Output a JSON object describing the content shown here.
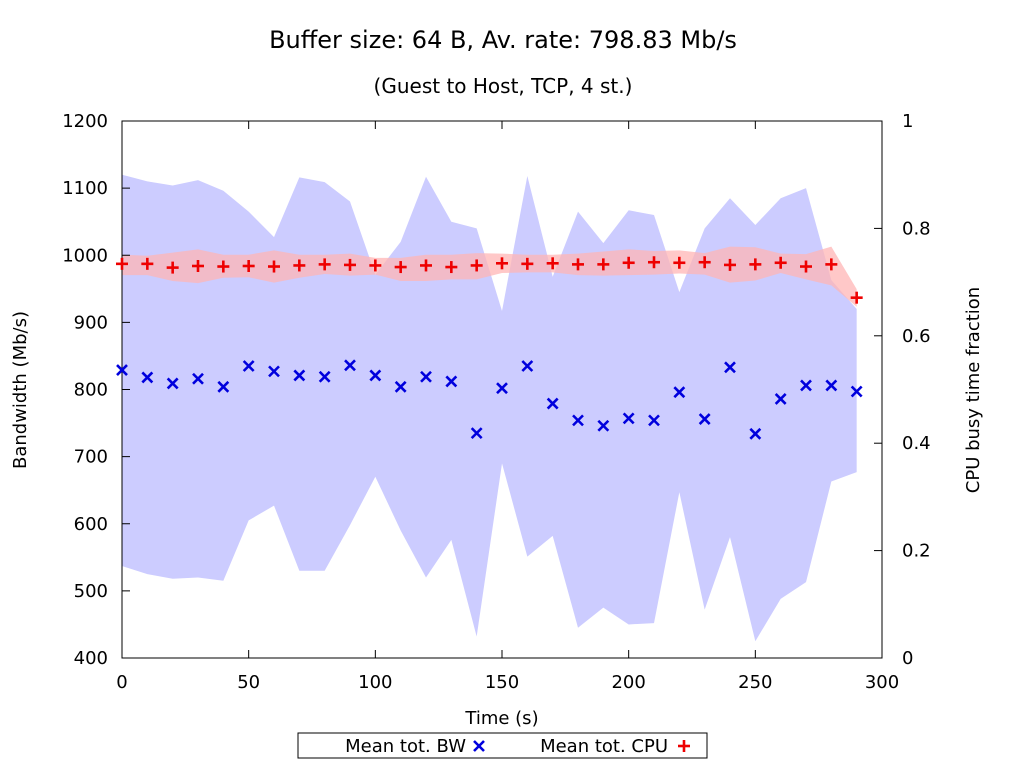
{
  "chart_data": {
    "type": "scatter",
    "title": "Buffer size: 64 B, Av. rate: 798.83 Mb/s",
    "subtitle": "(Guest to Host, TCP, 4 st.)",
    "xlabel": "Time (s)",
    "ylabel": "Bandwidth (Mb/s)",
    "y2label": "CPU busy time fraction",
    "xlim": [
      0,
      300
    ],
    "ylim": [
      400,
      1200
    ],
    "y2lim": [
      0,
      1
    ],
    "x_ticks": [
      "0",
      "50",
      "100",
      "150",
      "200",
      "250",
      "300"
    ],
    "y_ticks": [
      "400",
      "500",
      "600",
      "700",
      "800",
      "900",
      "1000",
      "1100",
      "1200"
    ],
    "y2_ticks": [
      "0",
      "0.2",
      "0.4",
      "0.6",
      "0.8",
      "1"
    ],
    "grid": false,
    "legend_position": "bottom",
    "colors": {
      "bw": "#0000dd",
      "bw_band": "#ccccff",
      "cpu": "#ee0000",
      "cpu_band": "#ffb6b6"
    },
    "series": [
      {
        "name": "Mean tot. BW",
        "axis": "left",
        "marker": "x",
        "x": [
          0,
          10,
          20,
          30,
          40,
          50,
          60,
          70,
          80,
          90,
          100,
          110,
          120,
          130,
          140,
          150,
          160,
          170,
          180,
          190,
          200,
          210,
          220,
          230,
          240,
          250,
          260,
          270,
          280,
          290
        ],
        "y": [
          829,
          818,
          809,
          816,
          804,
          835,
          827,
          821,
          819,
          836,
          821,
          804,
          819,
          812,
          735,
          802,
          835,
          779,
          754,
          746,
          757,
          754,
          796,
          756,
          833,
          734,
          786,
          806,
          806,
          797
        ],
        "band_upper": [
          1120,
          1110,
          1104,
          1112,
          1096,
          1065,
          1027,
          1116,
          1109,
          1080,
          971,
          1020,
          1117,
          1050,
          1040,
          917,
          1118,
          968,
          1065,
          1018,
          1067,
          1060,
          945,
          1040,
          1085,
          1045,
          1085,
          1100,
          963,
          920
        ],
        "band_lower": [
          537,
          525,
          518,
          520,
          515,
          605,
          627,
          530,
          530,
          598,
          670,
          590,
          520,
          576,
          432,
          690,
          551,
          582,
          445,
          475,
          450,
          452,
          647,
          472,
          580,
          425,
          488,
          513,
          663,
          677
        ]
      },
      {
        "name": "Mean tot. CPU",
        "axis": "right",
        "marker": "+",
        "x": [
          0,
          10,
          20,
          30,
          40,
          50,
          60,
          70,
          80,
          90,
          100,
          110,
          120,
          130,
          140,
          150,
          160,
          170,
          180,
          190,
          200,
          210,
          220,
          230,
          240,
          250,
          260,
          270,
          280,
          290
        ],
        "y": [
          0.734,
          0.734,
          0.727,
          0.73,
          0.729,
          0.73,
          0.729,
          0.731,
          0.733,
          0.732,
          0.731,
          0.728,
          0.731,
          0.728,
          0.731,
          0.735,
          0.734,
          0.735,
          0.733,
          0.733,
          0.736,
          0.737,
          0.736,
          0.737,
          0.732,
          0.733,
          0.736,
          0.729,
          0.733,
          0.671
        ],
        "band_upper": [
          0.751,
          0.749,
          0.755,
          0.761,
          0.751,
          0.751,
          0.759,
          0.751,
          0.751,
          0.753,
          0.745,
          0.745,
          0.751,
          0.751,
          0.754,
          0.753,
          0.751,
          0.751,
          0.753,
          0.757,
          0.761,
          0.758,
          0.759,
          0.754,
          0.766,
          0.765,
          0.753,
          0.752,
          0.766,
          0.687
        ],
        "band_lower": [
          0.713,
          0.713,
          0.702,
          0.698,
          0.708,
          0.709,
          0.699,
          0.708,
          0.715,
          0.712,
          0.714,
          0.702,
          0.702,
          0.705,
          0.705,
          0.717,
          0.718,
          0.718,
          0.713,
          0.712,
          0.713,
          0.714,
          0.716,
          0.714,
          0.699,
          0.703,
          0.717,
          0.705,
          0.694,
          0.654
        ]
      }
    ]
  }
}
